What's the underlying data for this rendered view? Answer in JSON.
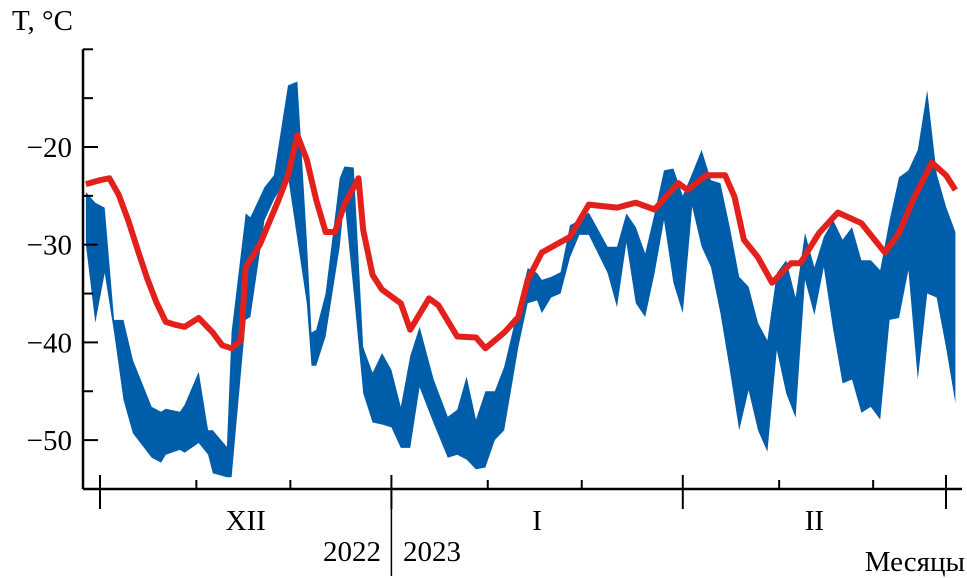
{
  "chart_data": {
    "type": "area",
    "ylabel": "T, °C",
    "xlabel": "Месяцы",
    "ylim": [
      -55,
      -10
    ],
    "y_ticks": [
      -50,
      -40,
      -30,
      -20
    ],
    "y_tick_labels": [
      "−50",
      "−40",
      "−30",
      "−20"
    ],
    "y_minor_ticks": [
      -45,
      -35,
      -25,
      -15,
      -10
    ],
    "month_labels": [
      {
        "label": "XII",
        "date": "2022-12-16T12:00"
      },
      {
        "label": "I",
        "date": "2023-01-16T12:00"
      },
      {
        "label": "II",
        "date": "2023-02-15T00:00"
      }
    ],
    "month_boundaries": [
      "2022-12-01T00:00",
      "2023-01-01T00:00",
      "2023-02-01T00:00",
      "2023-03-01T00:00"
    ],
    "minor_x_ticks": [
      "2022-11-11T06:00",
      "2022-12-11T06:00",
      "2022-12-21T06:00",
      "2023-01-11T06:00",
      "2023-01-21T06:00",
      "2023-02-11T06:00",
      "2023-02-21T06:00"
    ],
    "year_labels": [
      "2022",
      "2023"
    ],
    "year_boundary": "2023-01-01T00:00",
    "colors": {
      "band": "#005DAA",
      "line": "#E3211C",
      "axis": "#000000"
    },
    "series": [
      {
        "kind": "band",
        "points": [
          [
            "2022-11-29T12:00",
            -24.6,
            -30.0
          ],
          [
            "2022-11-30T12:00",
            -25.7,
            -38.0
          ],
          [
            "2022-12-01T12:00",
            -26.2,
            -32.9
          ],
          [
            "2022-12-02T12:00",
            -37.7,
            -39.0
          ],
          [
            "2022-12-03T12:00",
            -37.7,
            -45.9
          ],
          [
            "2022-12-04T12:00",
            -41.8,
            -49.3
          ],
          [
            "2022-12-06T12:00",
            -46.6,
            -51.8
          ],
          [
            "2022-12-07T12:00",
            -47.1,
            -52.3
          ],
          [
            "2022-12-08T00:00",
            -46.8,
            -51.5
          ],
          [
            "2022-12-09T12:00",
            -47.1,
            -51.0
          ],
          [
            "2022-12-10T00:00",
            -46.4,
            -51.3
          ],
          [
            "2022-12-11T12:00",
            -43.0,
            -50.3
          ],
          [
            "2022-12-12T12:00",
            -49.0,
            -51.5
          ],
          [
            "2022-12-13T00:00",
            -49.0,
            -53.4
          ],
          [
            "2022-12-14T12:00",
            -50.7,
            -53.8
          ],
          [
            "2022-12-15T00:00",
            -38.9,
            -53.8
          ],
          [
            "2022-12-16T12:00",
            -26.8,
            -37.7
          ],
          [
            "2022-12-17T00:00",
            -27.2,
            -37.4
          ],
          [
            "2022-12-18T12:00",
            -24.1,
            -27.5
          ],
          [
            "2022-12-19T12:00",
            -22.9,
            -25.4
          ],
          [
            "2022-12-21T00:00",
            -13.7,
            -23.0
          ],
          [
            "2022-12-22T00:00",
            -13.3,
            -29.5
          ],
          [
            "2022-12-23T00:00",
            -29.5,
            -36.0
          ],
          [
            "2022-12-23T12:00",
            -39.0,
            -42.4
          ],
          [
            "2022-12-24T00:00",
            -38.7,
            -42.4
          ],
          [
            "2022-12-25T00:00",
            -35.0,
            -39.4
          ],
          [
            "2022-12-26T12:00",
            -23.2,
            -30.2
          ],
          [
            "2022-12-27T00:00",
            -22.0,
            -25.4
          ],
          [
            "2022-12-28T00:00",
            -22.1,
            -35.0
          ],
          [
            "2022-12-29T00:00",
            -40.5,
            -45.2
          ],
          [
            "2022-12-30T00:00",
            -43.1,
            -48.2
          ],
          [
            "2022-12-31T00:00",
            -41.1,
            -48.4
          ],
          [
            "2023-01-01T00:00",
            -42.8,
            -48.7
          ],
          [
            "2023-01-02T00:00",
            -46.6,
            -50.8
          ],
          [
            "2023-01-03T00:00",
            -41.4,
            -50.8
          ],
          [
            "2023-01-04T00:00",
            -38.4,
            -44.6
          ],
          [
            "2023-01-05T12:00",
            -43.8,
            -48.3
          ],
          [
            "2023-01-07T00:00",
            -47.6,
            -51.8
          ],
          [
            "2023-01-08T00:00",
            -46.9,
            -51.5
          ],
          [
            "2023-01-09T00:00",
            -43.5,
            -52.0
          ],
          [
            "2023-01-10T00:00",
            -47.9,
            -53.0
          ],
          [
            "2023-01-11T00:00",
            -45.0,
            -52.8
          ],
          [
            "2023-01-12T00:00",
            -45.0,
            -50.0
          ],
          [
            "2023-01-13T00:00",
            -42.5,
            -49.0
          ],
          [
            "2023-01-14T12:00",
            -36.4,
            -40.5
          ],
          [
            "2023-01-15T12:00",
            -32.4,
            -36.0
          ],
          [
            "2023-01-16T12:00",
            -32.9,
            -35.7
          ],
          [
            "2023-01-17T00:00",
            -33.6,
            -37.0
          ],
          [
            "2023-01-18T00:00",
            -33.3,
            -35.4
          ],
          [
            "2023-01-19T00:00",
            -32.8,
            -35.0
          ],
          [
            "2023-01-20T00:00",
            -28.0,
            -31.3
          ],
          [
            "2023-01-21T00:00",
            -27.5,
            -29.0
          ],
          [
            "2023-01-22T00:00",
            -26.7,
            -29.0
          ],
          [
            "2023-01-24T00:00",
            -30.2,
            -32.9
          ],
          [
            "2023-01-25T00:00",
            -30.2,
            -36.4
          ],
          [
            "2023-01-26T00:00",
            -26.8,
            -29.8
          ],
          [
            "2023-01-27T00:00",
            -28.2,
            -36.0
          ],
          [
            "2023-01-28T00:00",
            -30.9,
            -37.4
          ],
          [
            "2023-01-29T00:00",
            -26.8,
            -32.9
          ],
          [
            "2023-01-30T00:00",
            -22.4,
            -27.5
          ],
          [
            "2023-01-31T00:00",
            -22.2,
            -33.9
          ],
          [
            "2023-02-01T00:00",
            -25.0,
            -37.0
          ],
          [
            "2023-02-02T00:00",
            -22.7,
            -26.1
          ],
          [
            "2023-02-03T00:00",
            -20.3,
            -30.2
          ],
          [
            "2023-02-04T00:00",
            -23.4,
            -32.3
          ],
          [
            "2023-02-05T00:00",
            -23.7,
            -37.0
          ],
          [
            "2023-02-06T00:00",
            -28.2,
            -42.8
          ],
          [
            "2023-02-07T00:00",
            -33.3,
            -49.0
          ],
          [
            "2023-02-08T00:00",
            -34.3,
            -44.9
          ],
          [
            "2023-02-09T00:00",
            -38.0,
            -49.0
          ],
          [
            "2023-02-10T00:00",
            -39.8,
            -51.2
          ],
          [
            "2023-02-11T00:00",
            -32.9,
            -40.8
          ],
          [
            "2023-02-12T00:00",
            -31.6,
            -45.2
          ],
          [
            "2023-02-13T00:00",
            -35.4,
            -47.7
          ],
          [
            "2023-02-14T00:00",
            -28.8,
            -33.6
          ],
          [
            "2023-02-15T00:00",
            -32.3,
            -37.2
          ],
          [
            "2023-02-16T00:00",
            -29.2,
            -32.3
          ],
          [
            "2023-02-17T00:00",
            -27.5,
            -38.7
          ],
          [
            "2023-02-18T00:00",
            -29.5,
            -44.2
          ],
          [
            "2023-02-19T00:00",
            -28.2,
            -43.8
          ],
          [
            "2023-02-20T00:00",
            -31.6,
            -47.2
          ],
          [
            "2023-02-21T00:00",
            -31.6,
            -46.6
          ],
          [
            "2023-02-22T00:00",
            -32.6,
            -47.9
          ],
          [
            "2023-02-23T00:00",
            -27.5,
            -37.7
          ],
          [
            "2023-02-24T00:00",
            -23.1,
            -37.5
          ],
          [
            "2023-02-25T00:00",
            -22.4,
            -32.6
          ],
          [
            "2023-02-26T00:00",
            -20.3,
            -43.8
          ],
          [
            "2023-02-27T00:00",
            -14.2,
            -35.0
          ],
          [
            "2023-02-28T00:00",
            -22.7,
            -35.4
          ],
          [
            "2023-03-01T00:00",
            -26.1,
            -40.5
          ],
          [
            "2023-03-02T00:00",
            -28.7,
            -46.2
          ]
        ]
      },
      {
        "kind": "line",
        "points": [
          [
            "2022-11-29T12:00",
            -23.8
          ],
          [
            "2022-12-01T00:00",
            -23.4
          ],
          [
            "2022-12-02T00:00",
            -23.2
          ],
          [
            "2022-12-03T00:00",
            -24.9
          ],
          [
            "2022-12-04T00:00",
            -27.5
          ],
          [
            "2022-12-05T00:00",
            -30.5
          ],
          [
            "2022-12-06T00:00",
            -33.4
          ],
          [
            "2022-12-07T00:00",
            -35.9
          ],
          [
            "2022-12-08T00:00",
            -37.9
          ],
          [
            "2022-12-09T00:00",
            -38.2
          ],
          [
            "2022-12-10T00:00",
            -38.4
          ],
          [
            "2022-12-11T12:00",
            -37.5
          ],
          [
            "2022-12-13T00:00",
            -39.0
          ],
          [
            "2022-12-14T00:00",
            -40.3
          ],
          [
            "2022-12-15T00:00",
            -40.6
          ],
          [
            "2022-12-16T00:00",
            -39.8
          ],
          [
            "2022-12-16T12:00",
            -32.3
          ],
          [
            "2022-12-18T00:00",
            -30.0
          ],
          [
            "2022-12-19T00:00",
            -27.7
          ],
          [
            "2022-12-20T00:00",
            -25.4
          ],
          [
            "2022-12-21T00:00",
            -22.9
          ],
          [
            "2022-12-22T00:00",
            -18.8
          ],
          [
            "2022-12-23T00:00",
            -21.3
          ],
          [
            "2022-12-24T00:00",
            -25.4
          ],
          [
            "2022-12-25T00:00",
            -28.7
          ],
          [
            "2022-12-26T00:00",
            -28.7
          ],
          [
            "2022-12-27T00:00",
            -25.9
          ],
          [
            "2022-12-28T12:00",
            -23.2
          ],
          [
            "2022-12-29T00:00",
            -28.5
          ],
          [
            "2022-12-30T00:00",
            -33.1
          ],
          [
            "2022-12-31T00:00",
            -34.6
          ],
          [
            "2023-01-02T00:00",
            -36.0
          ],
          [
            "2023-01-03T00:00",
            -38.7
          ],
          [
            "2023-01-05T00:00",
            -35.5
          ],
          [
            "2023-01-06T00:00",
            -36.2
          ],
          [
            "2023-01-08T00:00",
            -39.4
          ],
          [
            "2023-01-10T00:00",
            -39.5
          ],
          [
            "2023-01-11T00:00",
            -40.6
          ],
          [
            "2023-01-13T00:00",
            -39.0
          ],
          [
            "2023-01-14T12:00",
            -37.4
          ],
          [
            "2023-01-15T12:00",
            -33.6
          ],
          [
            "2023-01-17T00:00",
            -30.8
          ],
          [
            "2023-01-20T00:00",
            -29.2
          ],
          [
            "2023-01-22T00:00",
            -25.9
          ],
          [
            "2023-01-25T00:00",
            -26.2
          ],
          [
            "2023-01-27T00:00",
            -25.7
          ],
          [
            "2023-01-29T00:00",
            -26.4
          ],
          [
            "2023-01-31T12:00",
            -23.7
          ],
          [
            "2023-02-01T12:00",
            -24.4
          ],
          [
            "2023-02-03T12:00",
            -22.9
          ],
          [
            "2023-02-05T12:00",
            -22.9
          ],
          [
            "2023-02-06T12:00",
            -25.1
          ],
          [
            "2023-02-07T12:00",
            -29.5
          ],
          [
            "2023-02-09T00:00",
            -31.3
          ],
          [
            "2023-02-10T12:00",
            -33.9
          ],
          [
            "2023-02-12T12:00",
            -31.9
          ],
          [
            "2023-02-13T12:00",
            -31.9
          ],
          [
            "2023-02-15T12:00",
            -28.8
          ],
          [
            "2023-02-17T12:00",
            -26.7
          ],
          [
            "2023-02-20T00:00",
            -27.8
          ],
          [
            "2023-02-22T12:00",
            -30.8
          ],
          [
            "2023-02-24T00:00",
            -28.8
          ],
          [
            "2023-02-25T12:00",
            -25.4
          ],
          [
            "2023-02-27T12:00",
            -21.6
          ],
          [
            "2023-03-01T00:00",
            -22.9
          ],
          [
            "2023-03-02T00:00",
            -24.4
          ]
        ]
      }
    ]
  }
}
